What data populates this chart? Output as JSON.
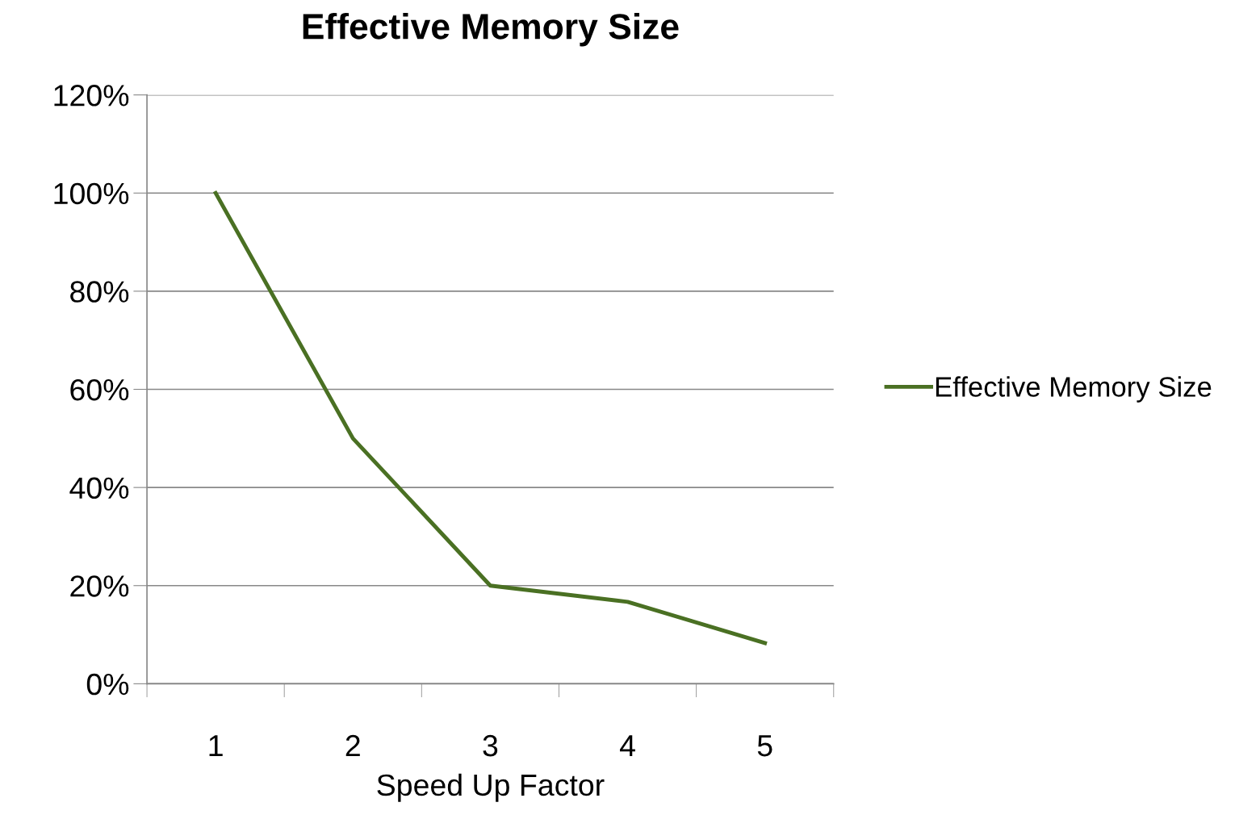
{
  "chart_data": {
    "type": "line",
    "title": "Effective Memory Size",
    "xlabel": "Speed Up Factor",
    "categories": [
      "1",
      "2",
      "3",
      "4",
      "5"
    ],
    "series": [
      {
        "name": "Effective Memory Size",
        "color": "#4a7023",
        "values": [
          100,
          50,
          20,
          16.7,
          8.3
        ]
      }
    ],
    "ylim": [
      0,
      120
    ],
    "yticks": [
      {
        "value": 0,
        "label": "0%"
      },
      {
        "value": 20,
        "label": "20%"
      },
      {
        "value": 40,
        "label": "40%"
      },
      {
        "value": 60,
        "label": "60%"
      },
      {
        "value": 80,
        "label": "80%"
      },
      {
        "value": 100,
        "label": "100%"
      },
      {
        "value": 120,
        "label": "120%"
      }
    ],
    "grid": "y",
    "legend": "right",
    "marker": "none",
    "line_style": "solid"
  }
}
